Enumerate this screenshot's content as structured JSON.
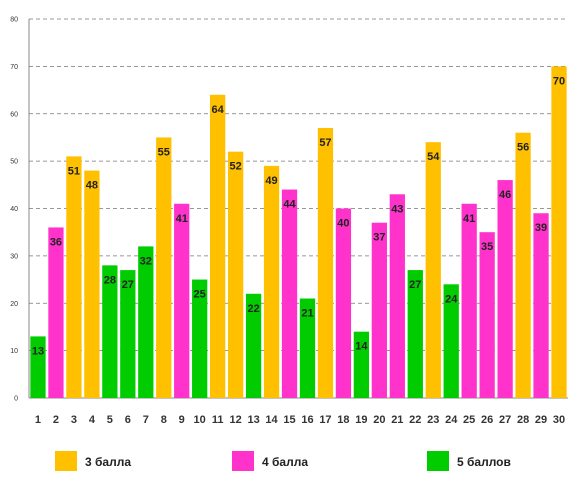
{
  "chart_data": {
    "type": "bar",
    "categories": [
      "1",
      "2",
      "3",
      "4",
      "5",
      "6",
      "7",
      "8",
      "9",
      "10",
      "11",
      "12",
      "13",
      "14",
      "15",
      "16",
      "17",
      "18",
      "19",
      "20",
      "21",
      "22",
      "23",
      "24",
      "25",
      "26",
      "27",
      "28",
      "29",
      "30"
    ],
    "values": [
      13,
      36,
      51,
      48,
      28,
      27,
      32,
      55,
      41,
      25,
      64,
      52,
      22,
      49,
      44,
      21,
      57,
      40,
      14,
      37,
      43,
      27,
      54,
      24,
      41,
      35,
      46,
      56,
      39,
      70
    ],
    "bar_groups": [
      5,
      4,
      3,
      3,
      5,
      5,
      5,
      3,
      4,
      5,
      3,
      3,
      5,
      3,
      4,
      5,
      3,
      4,
      5,
      4,
      4,
      5,
      3,
      5,
      4,
      4,
      4,
      3,
      4,
      3
    ],
    "title": "",
    "xlabel": "",
    "ylabel": "",
    "ylim": [
      0,
      80
    ],
    "yticks": [
      0,
      10,
      20,
      30,
      40,
      50,
      60,
      70,
      80
    ],
    "grid": true,
    "legend_position": "bottom",
    "legend": [
      {
        "group": 3,
        "label": "3 балла",
        "color": "#FFC000"
      },
      {
        "group": 4,
        "label": "4 балла",
        "color": "#FF33CC"
      },
      {
        "group": 5,
        "label": "5 баллов",
        "color": "#00CC00"
      }
    ]
  }
}
